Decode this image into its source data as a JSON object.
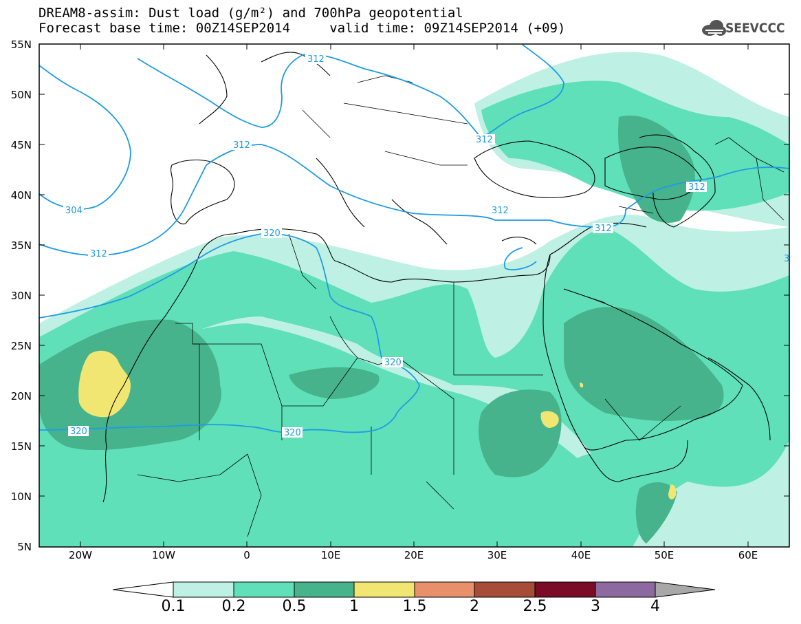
{
  "header": {
    "line1": "DREAM8-assim: Dust load (g/m²) and 700hPa geopotential",
    "line2": "Forecast base time: 00Z14SEP2014     valid time: 09Z14SEP2014 (+09)"
  },
  "logo": {
    "text": "SEEVCCC",
    "icon": "cloud-icon"
  },
  "map": {
    "lat_labels": [
      "55N",
      "50N",
      "45N",
      "40N",
      "35N",
      "30N",
      "25N",
      "20N",
      "15N",
      "10N",
      "5N"
    ],
    "lon_labels": [
      "20W",
      "10W",
      "0",
      "10E",
      "20E",
      "30E",
      "40E",
      "50E",
      "60E"
    ],
    "contour_labels": [
      "312",
      "312",
      "312",
      "304",
      "312",
      "312",
      "320",
      "312",
      "320",
      "320",
      "312",
      "312",
      "320",
      "3"
    ],
    "colors": {
      "land": "#000000",
      "contour": "#1e9be6",
      "frame": "#000000"
    }
  },
  "colorbar": {
    "labels": [
      "0.1",
      "0.2",
      "0.5",
      "1",
      "1.5",
      "2",
      "2.5",
      "3",
      "4"
    ],
    "colors": [
      "#ffffff",
      "#bff0e4",
      "#5fe0b8",
      "#46b38c",
      "#f2e673",
      "#e8906a",
      "#a84c3a",
      "#7a0c28",
      "#8c6aa0",
      "#a8a8a8"
    ]
  }
}
